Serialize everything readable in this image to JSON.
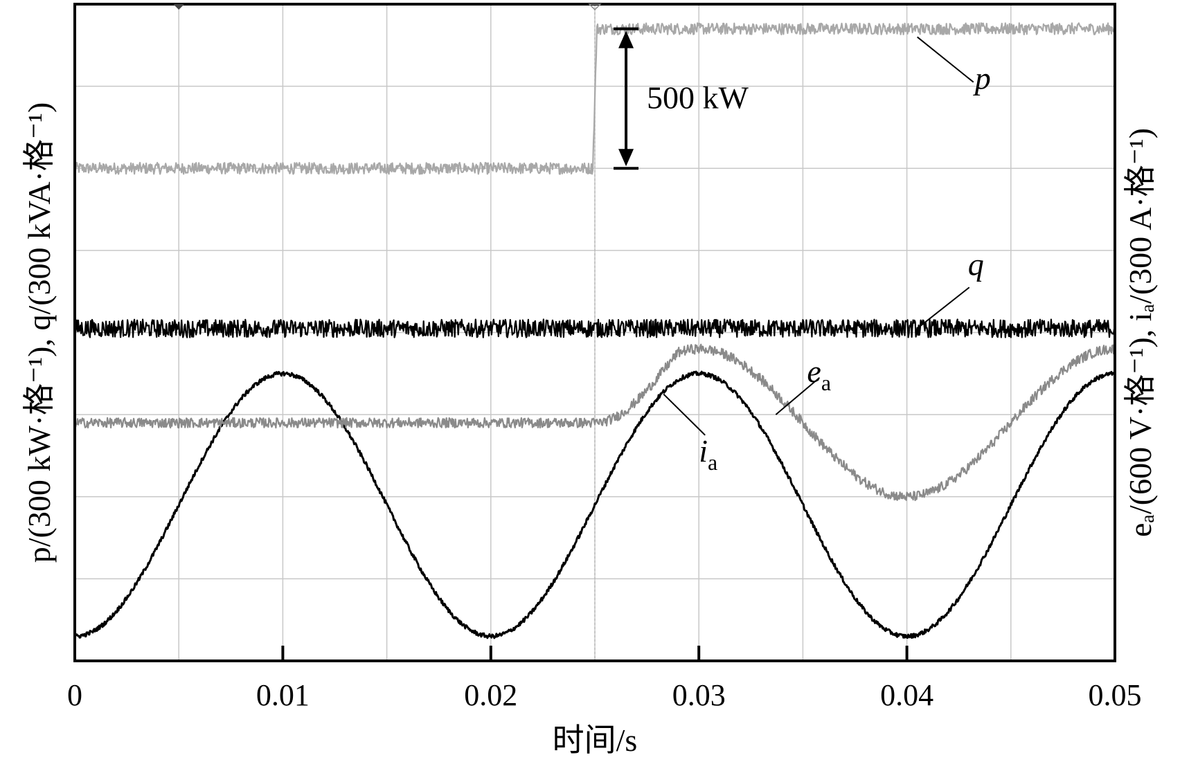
{
  "chart_data": {
    "type": "line",
    "xlabel": "时间/s",
    "ylabel_left": "p/(300 kW·格⁻¹), q/(300 kVA·格⁻¹)",
    "ylabel_right": "eₐ/(600 V·格⁻¹), iₐ/(300 A·格⁻¹)",
    "xlim": [
      0,
      0.05
    ],
    "x_ticks": [
      "0",
      "0.01",
      "0.02",
      "0.03",
      "0.04",
      "0.05"
    ],
    "grid": true,
    "grid_divisions": {
      "x": 10,
      "y": 8
    },
    "series": [
      {
        "name": "p",
        "color": "#a8a8a8",
        "unit": "div",
        "x": [
          0,
          0.0249,
          0.0251,
          0.05
        ],
        "values": [
          6.0,
          6.0,
          7.7,
          7.7
        ]
      },
      {
        "name": "q",
        "color": "#000000",
        "unit": "div",
        "x": [
          0,
          0.05
        ],
        "values": [
          4.05,
          4.05
        ]
      },
      {
        "name": "e",
        "sub": "a",
        "color": "#000000",
        "unit": "div",
        "x": [
          0,
          0.005,
          0.01,
          0.015,
          0.02,
          0.025,
          0.03,
          0.035,
          0.04,
          0.045,
          0.05
        ],
        "values": [
          0.3,
          1.9,
          3.5,
          1.9,
          0.3,
          1.9,
          3.5,
          1.9,
          0.3,
          1.9,
          3.5
        ]
      },
      {
        "name": "i",
        "sub": "a",
        "color": "#8a8a8a",
        "unit": "div",
        "x": [
          0,
          0.025,
          0.0275,
          0.03,
          0.0325,
          0.035,
          0.0375,
          0.04,
          0.0425,
          0.045,
          0.0475,
          0.05
        ],
        "values": [
          2.9,
          2.9,
          3.3,
          3.8,
          3.63,
          2.9,
          2.17,
          2.0,
          2.17,
          2.9,
          3.63,
          3.8
        ]
      }
    ],
    "annotations": [
      {
        "text": "500 kW",
        "x": 0.0265,
        "y_from": 6.0,
        "y_to": 7.7
      }
    ],
    "labels": {
      "p": "p",
      "q": "q",
      "e_base": "e",
      "e_sub": "a",
      "i_base": "i",
      "i_sub": "a"
    }
  }
}
